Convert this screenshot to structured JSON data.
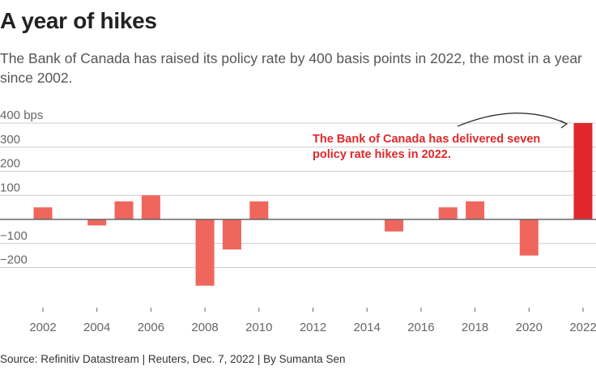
{
  "header": {
    "title": "A year of hikes",
    "subtitle": "The Bank of Canada has raised its policy rate by 400 basis points in 2022, the most in a year since 2002."
  },
  "footer": {
    "source": "Source: Refinitiv Datastream | Reuters, Dec. 7, 2022 | By Sumanta Sen"
  },
  "colors": {
    "bar": "#ef665d",
    "highlight_bar": "#e0282b",
    "annotation": "#e0282b",
    "gridline": "#cccccc",
    "zero_line": "#666666"
  },
  "chart_data": {
    "type": "bar",
    "title": "A year of hikes",
    "xlabel": "",
    "ylabel": "bps",
    "ylim": [
      -300,
      400
    ],
    "grid": true,
    "x": [
      2002,
      2003,
      2004,
      2005,
      2006,
      2007,
      2008,
      2009,
      2010,
      2011,
      2012,
      2013,
      2014,
      2015,
      2016,
      2017,
      2018,
      2019,
      2020,
      2021,
      2022
    ],
    "values": [
      50,
      0,
      -25,
      75,
      100,
      0,
      -275,
      -125,
      75,
      0,
      0,
      0,
      0,
      -50,
      0,
      50,
      75,
      0,
      -150,
      0,
      400
    ],
    "highlight": 2022,
    "yticks": [
      {
        "value": 400,
        "label": "400 bps"
      },
      {
        "value": 300,
        "label": "300"
      },
      {
        "value": 200,
        "label": "200"
      },
      {
        "value": 100,
        "label": "100"
      },
      {
        "value": -100,
        "label": "−100"
      },
      {
        "value": -200,
        "label": "−200"
      }
    ],
    "xticks": [
      {
        "value": 2002,
        "label": "2002"
      },
      {
        "value": 2004,
        "label": "2004"
      },
      {
        "value": 2006,
        "label": "2006"
      },
      {
        "value": 2008,
        "label": "2008"
      },
      {
        "value": 2010,
        "label": "2010"
      },
      {
        "value": 2012,
        "label": "2012"
      },
      {
        "value": 2014,
        "label": "2014"
      },
      {
        "value": 2016,
        "label": "2016"
      },
      {
        "value": 2018,
        "label": "2018"
      },
      {
        "value": 2020,
        "label": "2020"
      },
      {
        "value": 2022,
        "label": "2022"
      }
    ],
    "annotation": {
      "lines": [
        "The Bank of Canada has delivered seven",
        "policy rate hikes in 2022."
      ],
      "target": 2022
    }
  }
}
